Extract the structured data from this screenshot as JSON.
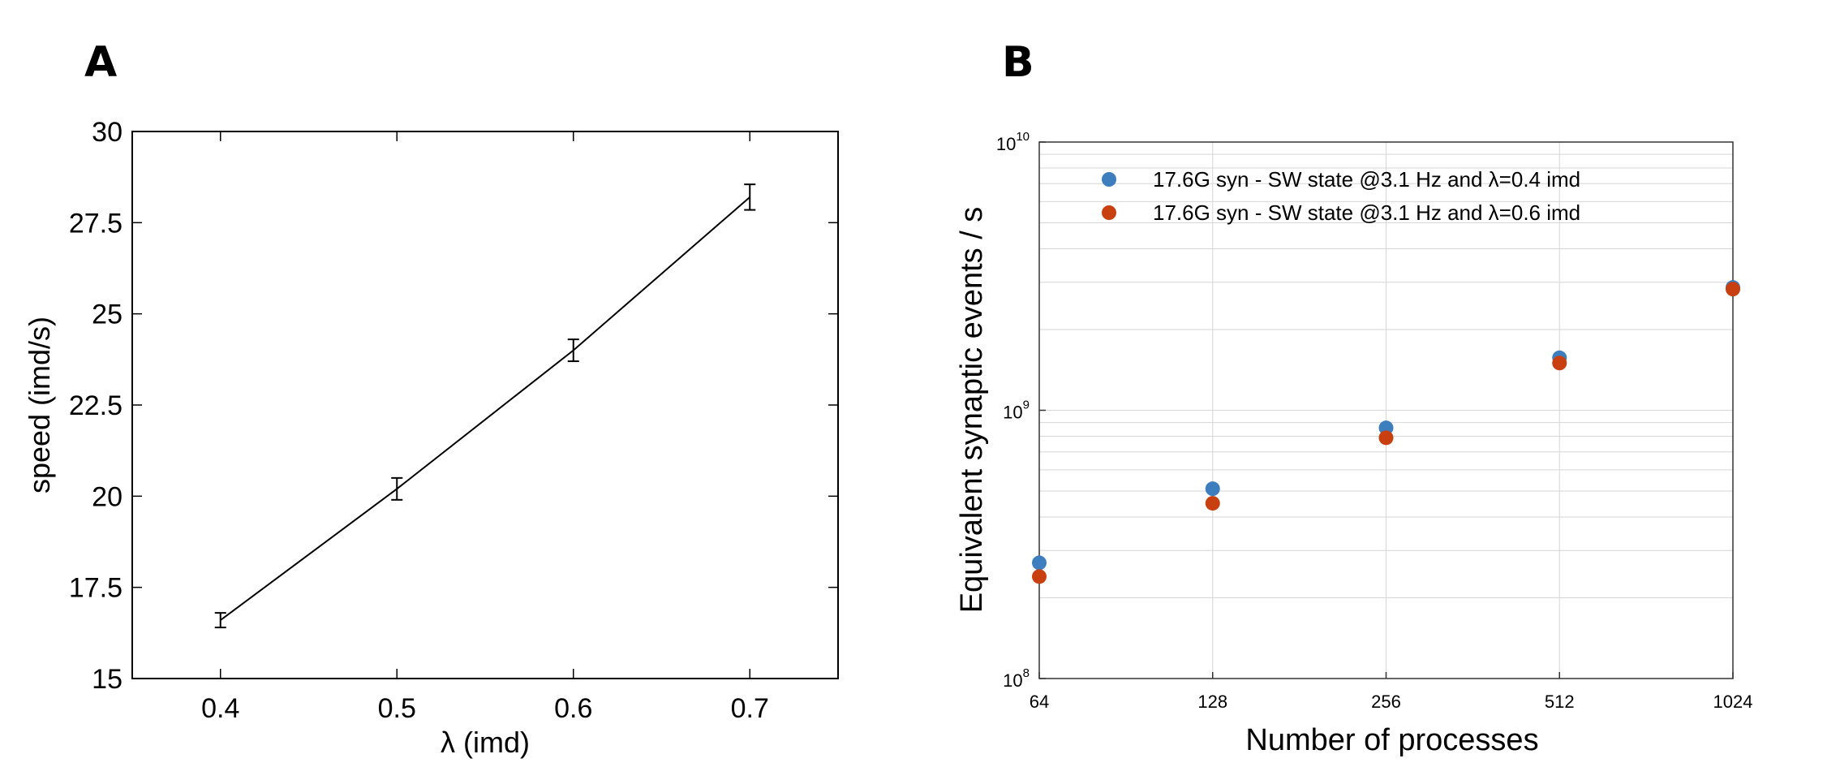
{
  "chart_data": [
    {
      "panel": "A",
      "type": "line",
      "title": "",
      "xlabel": "λ  (imd)",
      "ylabel": "speed  (imd/s)",
      "xlim": [
        0.35,
        0.75
      ],
      "ylim": [
        15,
        30
      ],
      "xticks": [
        0.4,
        0.5,
        0.6,
        0.7
      ],
      "xtick_labels": [
        "0.4",
        "0.5",
        "0.6",
        "0.7"
      ],
      "yticks": [
        15,
        17.5,
        20,
        22.5,
        25,
        27.5,
        30
      ],
      "ytick_labels": [
        "15",
        "17.5",
        "20",
        "22.5",
        "25",
        "27.5",
        "30"
      ],
      "grid": false,
      "series": [
        {
          "name": "speed",
          "x": [
            0.4,
            0.5,
            0.6,
            0.7
          ],
          "y": [
            16.6,
            20.2,
            24.0,
            28.2
          ],
          "yerr": [
            0.2,
            0.3,
            0.3,
            0.35
          ],
          "color": "#000000"
        }
      ]
    },
    {
      "panel": "B",
      "type": "scatter",
      "title": "",
      "xlabel": "Number of processes",
      "ylabel": "Equivalent synaptic events / s",
      "xscale": "log2",
      "yscale": "log10",
      "xlim": [
        64,
        1024
      ],
      "ylim": [
        100000000,
        10000000000
      ],
      "xticks": [
        64,
        128,
        256,
        512,
        1024
      ],
      "xtick_labels": [
        "64",
        "128",
        "256",
        "512",
        "1024"
      ],
      "ytick_labels": [
        {
          "base": "10",
          "exp": "8"
        },
        {
          "base": "10",
          "exp": "9"
        },
        {
          "base": "10",
          "exp": "10"
        }
      ],
      "grid": true,
      "legend_position": "top-left",
      "series": [
        {
          "name": "17.6G syn - SW state @3.1 Hz and λ=0.4 imd",
          "color": "#3d7ebf",
          "x": [
            64,
            128,
            256,
            512,
            1024
          ],
          "y": [
            270000000,
            510000000,
            860000000,
            1570000000,
            2870000000
          ]
        },
        {
          "name": "17.6G syn - SW state @3.1 Hz and λ=0.6 imd",
          "color": "#c8400f",
          "x": [
            64,
            128,
            256,
            512,
            1024
          ],
          "y": [
            240000000,
            450000000,
            790000000,
            1500000000,
            2830000000
          ]
        }
      ]
    }
  ],
  "panels": {
    "a_label": "A",
    "b_label": "B"
  }
}
